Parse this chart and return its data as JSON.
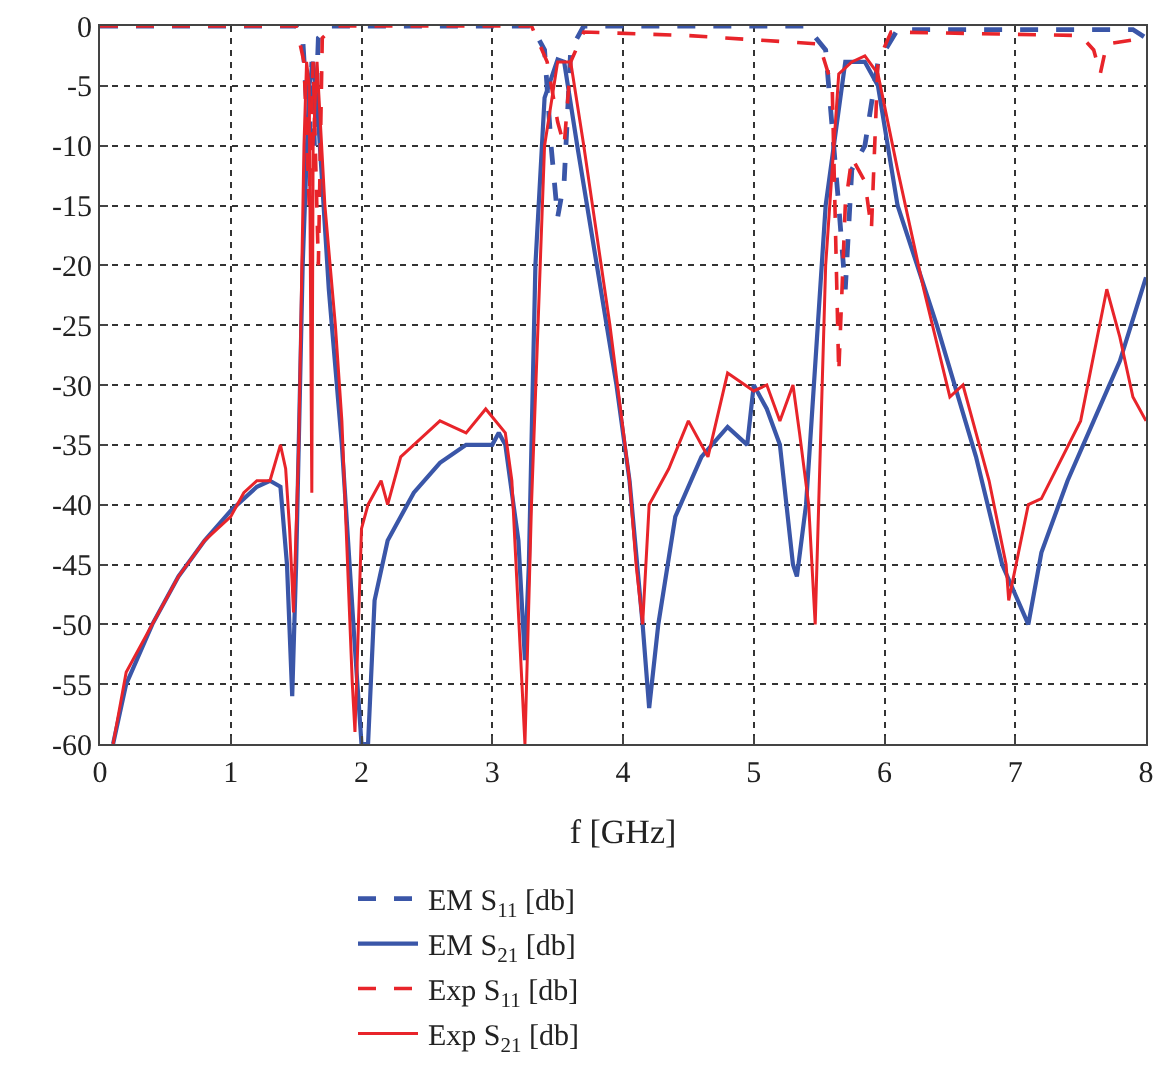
{
  "chart_data": {
    "type": "line",
    "xlabel": "f [GHz]",
    "xlim": [
      0,
      8
    ],
    "ylim": [
      -60,
      0
    ],
    "xticks": [
      0,
      1,
      2,
      3,
      4,
      5,
      6,
      7,
      8
    ],
    "yticks": [
      0,
      -5,
      -10,
      -15,
      -20,
      -25,
      -30,
      -35,
      -40,
      -45,
      -50,
      -55,
      -60
    ],
    "grid": true,
    "legend": "bottom",
    "series": [
      {
        "name": "EM S$_{11}$ [db]",
        "color": "#3a56a8",
        "line_style": "dashed",
        "x": [
          0,
          1.5,
          1.55,
          1.6,
          1.62,
          1.64,
          1.67,
          1.75,
          3.3,
          3.4,
          3.45,
          3.5,
          3.55,
          3.6,
          3.7,
          5.4,
          5.55,
          5.65,
          5.7,
          5.75,
          5.85,
          5.95,
          6.1,
          7.9,
          8.0
        ],
        "values": [
          0,
          0,
          -1,
          -10,
          -3,
          -10,
          -1,
          0,
          0,
          -2,
          -10,
          -16,
          -13,
          -2,
          0,
          0,
          -2,
          -15,
          -22,
          -12,
          -10,
          -3,
          -0.3,
          -0.3,
          -1
        ]
      },
      {
        "name": "EM S$_{21}$ [db]",
        "color": "#3a56a8",
        "line_style": "solid",
        "x": [
          0.1,
          0.2,
          0.4,
          0.6,
          0.8,
          1.0,
          1.2,
          1.3,
          1.38,
          1.43,
          1.47,
          1.5,
          1.55,
          1.6,
          1.63,
          1.67,
          1.75,
          1.85,
          1.95,
          2.0,
          2.05,
          2.1,
          2.2,
          2.4,
          2.6,
          2.8,
          3.0,
          3.05,
          3.1,
          3.2,
          3.25,
          3.28,
          3.33,
          3.4,
          3.5,
          3.55,
          3.65,
          3.8,
          3.95,
          4.05,
          4.15,
          4.2,
          4.27,
          4.4,
          4.6,
          4.8,
          4.95,
          5.0,
          5.1,
          5.2,
          5.3,
          5.33,
          5.4,
          5.55,
          5.7,
          5.85,
          5.95,
          6.1,
          6.4,
          6.7,
          6.9,
          7.1,
          7.2,
          7.4,
          7.6,
          7.8,
          8.0
        ],
        "values": [
          -60,
          -55,
          -50,
          -46,
          -43,
          -40.5,
          -38.5,
          -38,
          -38.5,
          -45,
          -56,
          -45,
          -20,
          -5,
          -3,
          -8,
          -22,
          -35,
          -52,
          -60,
          -60,
          -48,
          -43,
          -39,
          -36.5,
          -35,
          -35,
          -34,
          -35,
          -43,
          -53,
          -45,
          -20,
          -6,
          -2.8,
          -3,
          -10,
          -20,
          -30,
          -38,
          -50,
          -57,
          -50,
          -41,
          -36,
          -33.5,
          -35,
          -30,
          -32,
          -35,
          -45,
          -46,
          -40,
          -15,
          -3,
          -3,
          -5,
          -15,
          -25,
          -36,
          -45,
          -50,
          -44,
          -38,
          -33,
          -28,
          -21
        ]
      },
      {
        "name": "Exp S$_{11}$ [db]",
        "color": "#e8242a",
        "line_style": "dashed",
        "x": [
          0,
          1.5,
          1.56,
          1.6,
          1.63,
          1.67,
          1.7,
          1.8,
          3.3,
          3.42,
          3.5,
          3.55,
          3.6,
          3.7,
          4.5,
          5.5,
          5.6,
          5.65,
          5.7,
          5.75,
          5.85,
          5.9,
          5.95,
          6.05,
          7.5,
          7.6,
          7.65,
          7.7,
          8.0
        ],
        "values": [
          0,
          0,
          -3,
          -15,
          -3,
          -20,
          -1,
          0,
          0,
          -3,
          -8,
          -10,
          -3,
          -0.5,
          -0.8,
          -1.5,
          -5,
          -29,
          -15,
          -11,
          -13,
          -17,
          -3,
          -0.5,
          -0.8,
          -2,
          -4,
          -1.5,
          -1
        ]
      },
      {
        "name": "Exp S$_{21}$ [db]",
        "color": "#e8242a",
        "line_style": "solid",
        "x": [
          0.1,
          0.2,
          0.4,
          0.6,
          0.8,
          1.0,
          1.1,
          1.2,
          1.3,
          1.38,
          1.42,
          1.45,
          1.48,
          1.52,
          1.56,
          1.58,
          1.6,
          1.62,
          1.63,
          1.66,
          1.72,
          1.8,
          1.85,
          1.93,
          1.95,
          2.0,
          2.05,
          2.15,
          2.2,
          2.3,
          2.4,
          2.5,
          2.6,
          2.7,
          2.8,
          2.95,
          3.1,
          3.15,
          3.25,
          3.3,
          3.4,
          3.5,
          3.6,
          3.7,
          3.9,
          4.05,
          4.1,
          4.15,
          4.2,
          4.35,
          4.5,
          4.65,
          4.8,
          5.0,
          5.1,
          5.2,
          5.3,
          5.35,
          5.42,
          5.47,
          5.55,
          5.65,
          5.75,
          5.85,
          5.95,
          6.1,
          6.3,
          6.5,
          6.6,
          6.8,
          6.93,
          6.95,
          7.1,
          7.2,
          7.5,
          7.7,
          7.8,
          7.9,
          8.0
        ],
        "values": [
          -60,
          -54,
          -50,
          -46,
          -43,
          -41,
          -39,
          -38,
          -38,
          -35,
          -37,
          -42,
          -49,
          -35,
          -10,
          -3,
          -5,
          -39,
          -10,
          -3,
          -15,
          -25,
          -33,
          -55,
          -59,
          -42,
          -40,
          -38,
          -40,
          -36,
          -35,
          -34,
          -33,
          -33.5,
          -34,
          -32,
          -34,
          -38,
          -60,
          -40,
          -10,
          -3,
          -3,
          -10,
          -25,
          -38,
          -45,
          -50,
          -40,
          -37,
          -33,
          -36,
          -29,
          -30.5,
          -30,
          -33,
          -30,
          -34,
          -40,
          -50,
          -20,
          -4,
          -3,
          -2.5,
          -4,
          -12,
          -22,
          -31,
          -30,
          -38,
          -45,
          -48,
          -40,
          -39.5,
          -33,
          -22,
          -26,
          -31,
          -33
        ]
      }
    ]
  }
}
